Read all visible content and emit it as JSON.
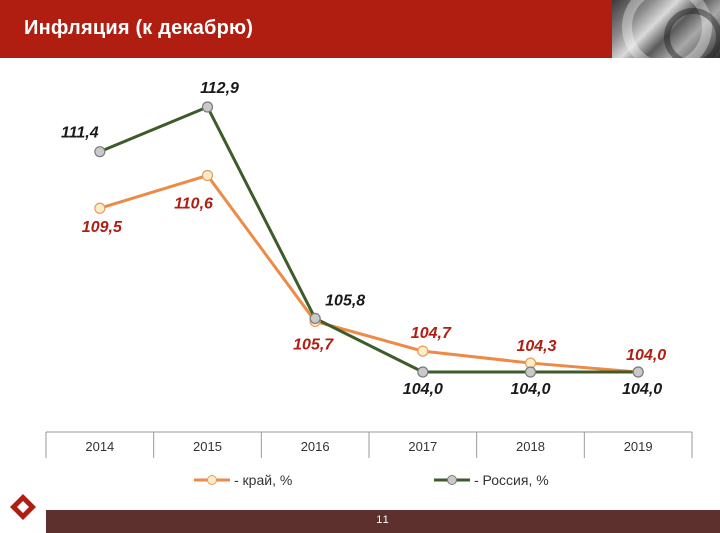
{
  "header": {
    "title": "Инфляция (к декабрю)"
  },
  "footer": {
    "page_number": "11"
  },
  "colors": {
    "header_bg": "#b01e12",
    "footer_bg": "#5d2f2d",
    "kray_line": "#ec8a46",
    "russia_line": "#3d5c2a",
    "kray_label": "#b01e12",
    "russia_label": "#1a1a1a"
  },
  "chart_data": {
    "type": "line",
    "categories": [
      "2014",
      "2015",
      "2016",
      "2017",
      "2018",
      "2019"
    ],
    "series": [
      {
        "name": "- край, %",
        "values": [
          109.5,
          110.6,
          105.7,
          104.7,
          104.3,
          104.0
        ],
        "labels": [
          "109,5",
          "110,6",
          "105,7",
          "104,7",
          "104,3",
          "104,0"
        ],
        "color": "#ec8a46",
        "label_color": "#b01e12"
      },
      {
        "name": "- Россия, %",
        "values": [
          111.4,
          112.9,
          105.8,
          104.0,
          104.0,
          104.0
        ],
        "labels": [
          "111,4",
          "112,9",
          "105,8",
          "104,0",
          "104,0",
          "104,0"
        ],
        "color": "#3d5c2a",
        "label_color": "#1a1a1a"
      }
    ],
    "grid": false,
    "legend_position": "bottom"
  }
}
